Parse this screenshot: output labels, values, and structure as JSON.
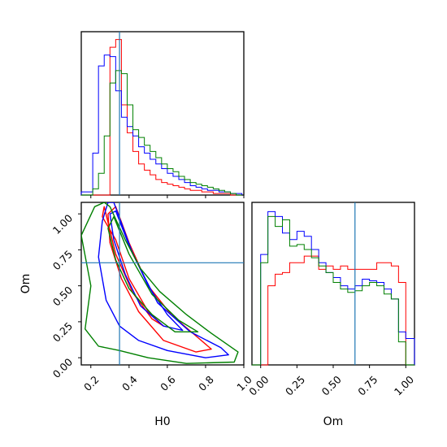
{
  "chart_data": [
    {
      "panel": "H0 marginal",
      "type": "histogram",
      "x_range": [
        0.15,
        1.0
      ],
      "truth": 0.35,
      "xticks_visible": false,
      "yticks_visible": false,
      "bin_edges": [
        0.15,
        0.18,
        0.21,
        0.24,
        0.27,
        0.3,
        0.33,
        0.36,
        0.39,
        0.42,
        0.45,
        0.48,
        0.51,
        0.54,
        0.57,
        0.6,
        0.63,
        0.66,
        0.69,
        0.72,
        0.75,
        0.78,
        0.81,
        0.84,
        0.87,
        0.9,
        0.93,
        0.96,
        0.99
      ],
      "series": [
        {
          "color": "#ff0000",
          "values": [
            0,
            0,
            0,
            0,
            0,
            95,
            100,
            58,
            40,
            28,
            20,
            16,
            13,
            10,
            8,
            7,
            6,
            5,
            4,
            3,
            3,
            2,
            2,
            1,
            1,
            1,
            0,
            0
          ]
        },
        {
          "color": "#0000ff",
          "values": [
            2,
            2,
            27,
            83,
            90,
            89,
            67,
            50,
            44,
            38,
            31,
            27,
            23,
            20,
            17,
            14,
            12,
            10,
            8,
            6,
            5,
            4,
            3,
            3,
            2,
            2,
            1,
            1
          ]
        },
        {
          "color": "#008000",
          "values": [
            0,
            0,
            4,
            14,
            38,
            72,
            80,
            78,
            58,
            42,
            37,
            32,
            28,
            24,
            20,
            17,
            15,
            12,
            10,
            8,
            7,
            6,
            5,
            4,
            3,
            2,
            1,
            0
          ]
        }
      ]
    },
    {
      "panel": "H0 vs Om joint",
      "type": "contour",
      "x_range": [
        0.15,
        1.0
      ],
      "y_range": [
        -0.05,
        1.08
      ],
      "truth": {
        "x": 0.35,
        "y": 0.66
      },
      "xticks": [
        0.2,
        0.4,
        0.6,
        0.8,
        1.0
      ],
      "xtick_labels": [
        "0.2",
        "0.4",
        "0.6",
        "0.8",
        "1.0"
      ],
      "yticks": [
        0.0,
        0.25,
        0.5,
        0.75,
        1.0
      ],
      "ytick_labels": [
        "0.00",
        "0.25",
        "0.50",
        "0.75",
        "1.00"
      ],
      "xlabel": "H0",
      "ylabel": "Om",
      "series": [
        {
          "color": "#ff0000",
          "contours": [
            [
              [
                0.33,
                1.05
              ],
              [
                0.4,
                0.8
              ],
              [
                0.5,
                0.5
              ],
              [
                0.62,
                0.3
              ],
              [
                0.76,
                0.14
              ],
              [
                0.83,
                0.06
              ],
              [
                0.75,
                0.04
              ],
              [
                0.58,
                0.12
              ],
              [
                0.45,
                0.32
              ],
              [
                0.36,
                0.55
              ],
              [
                0.3,
                0.8
              ],
              [
                0.29,
                1.0
              ]
            ],
            [
              [
                0.27,
                1.05
              ],
              [
                0.33,
                0.72
              ],
              [
                0.42,
                0.45
              ],
              [
                0.52,
                0.27
              ],
              [
                0.58,
                0.22
              ],
              [
                0.5,
                0.32
              ],
              [
                0.4,
                0.55
              ],
              [
                0.33,
                0.82
              ],
              [
                0.26,
                0.98
              ]
            ]
          ]
        },
        {
          "color": "#0000ff",
          "contours": [
            [
              [
                0.32,
                1.08
              ],
              [
                0.42,
                0.72
              ],
              [
                0.55,
                0.38
              ],
              [
                0.72,
                0.18
              ],
              [
                0.88,
                0.07
              ],
              [
                0.92,
                0.02
              ],
              [
                0.8,
                0.0
              ],
              [
                0.6,
                0.05
              ],
              [
                0.45,
                0.12
              ],
              [
                0.35,
                0.22
              ],
              [
                0.28,
                0.4
              ],
              [
                0.24,
                0.7
              ],
              [
                0.26,
                0.95
              ],
              [
                0.29,
                1.08
              ]
            ],
            [
              [
                0.33,
                1.02
              ],
              [
                0.4,
                0.78
              ],
              [
                0.5,
                0.5
              ],
              [
                0.6,
                0.3
              ],
              [
                0.68,
                0.19
              ],
              [
                0.58,
                0.22
              ],
              [
                0.46,
                0.36
              ],
              [
                0.38,
                0.58
              ],
              [
                0.32,
                0.82
              ],
              [
                0.3,
                1.0
              ]
            ]
          ]
        },
        {
          "color": "#008000",
          "contours": [
            [
              [
                0.3,
                1.05
              ],
              [
                0.38,
                0.82
              ],
              [
                0.46,
                0.62
              ],
              [
                0.56,
                0.46
              ],
              [
                0.7,
                0.3
              ],
              [
                0.83,
                0.17
              ],
              [
                0.97,
                0.04
              ],
              [
                0.95,
                -0.03
              ],
              [
                0.7,
                -0.04
              ],
              [
                0.5,
                0.0
              ],
              [
                0.35,
                0.05
              ],
              [
                0.24,
                0.08
              ],
              [
                0.17,
                0.2
              ],
              [
                0.2,
                0.5
              ],
              [
                0.15,
                0.85
              ],
              [
                0.22,
                1.05
              ],
              [
                0.27,
                1.08
              ]
            ],
            [
              [
                0.32,
                0.98
              ],
              [
                0.4,
                0.72
              ],
              [
                0.52,
                0.44
              ],
              [
                0.66,
                0.26
              ],
              [
                0.76,
                0.18
              ],
              [
                0.64,
                0.18
              ],
              [
                0.52,
                0.3
              ],
              [
                0.4,
                0.48
              ],
              [
                0.33,
                0.68
              ],
              [
                0.29,
                0.9
              ]
            ]
          ]
        }
      ]
    },
    {
      "panel": "Om marginal",
      "type": "histogram",
      "x_range": [
        -0.06,
        1.06
      ],
      "truth": 0.65,
      "xticks": [
        0.0,
        0.25,
        0.5,
        0.75,
        1.0
      ],
      "xtick_labels": [
        "0.00",
        "0.25",
        "0.50",
        "0.75",
        "1.00"
      ],
      "xlabel": "Om",
      "yticks_visible": false,
      "bin_edges": [
        -0.06,
        0.0,
        0.05,
        0.1,
        0.15,
        0.2,
        0.25,
        0.3,
        0.35,
        0.4,
        0.45,
        0.5,
        0.55,
        0.6,
        0.65,
        0.7,
        0.75,
        0.8,
        0.85,
        0.9,
        0.95,
        1.0,
        1.06
      ],
      "series": [
        {
          "color": "#ff0000",
          "values": [
            0,
            0,
            48,
            55,
            56,
            62,
            62,
            66,
            66,
            58,
            60,
            58,
            60,
            58,
            58,
            58,
            58,
            62,
            62,
            60,
            50,
            0
          ]
        },
        {
          "color": "#0000ff",
          "values": [
            0,
            67,
            93,
            90,
            80,
            76,
            81,
            78,
            70,
            62,
            56,
            53,
            48,
            46,
            48,
            52,
            51,
            50,
            46,
            40,
            20,
            16
          ]
        },
        {
          "color": "#008000",
          "values": [
            0,
            62,
            90,
            84,
            88,
            72,
            73,
            70,
            65,
            60,
            56,
            50,
            46,
            44,
            45,
            48,
            50,
            48,
            43,
            40,
            14,
            0
          ]
        }
      ]
    }
  ]
}
